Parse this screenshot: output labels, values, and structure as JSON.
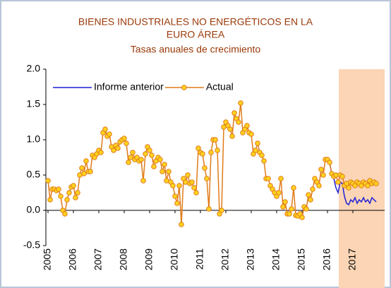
{
  "chart_data": {
    "type": "line",
    "title": [
      "BIENES INDUSTRIALES NO ENERGÉTICOS EN LA",
      "EURO ÁREA"
    ],
    "subtitle": "Tasas anuales de crecimiento",
    "categories": [
      "2005",
      null,
      null,
      null,
      null,
      null,
      null,
      null,
      null,
      null,
      null,
      null,
      "2006",
      null,
      null,
      null,
      null,
      null,
      null,
      null,
      null,
      null,
      null,
      null,
      "2007",
      null,
      null,
      null,
      null,
      null,
      null,
      null,
      null,
      null,
      null,
      null,
      "2008",
      null,
      null,
      null,
      null,
      null,
      null,
      null,
      null,
      null,
      null,
      null,
      "2009",
      null,
      null,
      null,
      null,
      null,
      null,
      null,
      null,
      null,
      null,
      null,
      "2010",
      null,
      null,
      null,
      null,
      null,
      null,
      null,
      null,
      null,
      null,
      null,
      "2011",
      null,
      null,
      null,
      null,
      null,
      null,
      null,
      null,
      null,
      null,
      null,
      "2012",
      null,
      null,
      null,
      null,
      null,
      null,
      null,
      null,
      null,
      null,
      null,
      "2013",
      null,
      null,
      null,
      null,
      null,
      null,
      null,
      null,
      null,
      null,
      null,
      "2014",
      null,
      null,
      null,
      null,
      null,
      null,
      null,
      null,
      null,
      null,
      null,
      "2015",
      null,
      null,
      null,
      null,
      null,
      null,
      null,
      null,
      null,
      null,
      null,
      "2016",
      null,
      null,
      null,
      null,
      null,
      null,
      null,
      null,
      null,
      null,
      null,
      "2017",
      null,
      null,
      null,
      null,
      null,
      null,
      null,
      null,
      null,
      null,
      null
    ],
    "series": [
      {
        "name": "Informe anterior",
        "color": "#1f1fd6",
        "marker": false,
        "values": [
          null,
          null,
          null,
          null,
          null,
          null,
          null,
          null,
          null,
          null,
          null,
          null,
          null,
          null,
          null,
          null,
          null,
          null,
          null,
          null,
          null,
          null,
          null,
          null,
          null,
          null,
          null,
          null,
          null,
          null,
          null,
          null,
          null,
          null,
          null,
          null,
          null,
          null,
          null,
          null,
          null,
          null,
          null,
          null,
          null,
          null,
          null,
          null,
          null,
          null,
          null,
          null,
          null,
          null,
          null,
          null,
          null,
          null,
          null,
          null,
          null,
          null,
          null,
          null,
          null,
          null,
          null,
          null,
          null,
          null,
          null,
          null,
          null,
          null,
          null,
          null,
          null,
          null,
          null,
          null,
          null,
          null,
          null,
          null,
          null,
          null,
          null,
          null,
          null,
          null,
          null,
          null,
          null,
          null,
          null,
          null,
          null,
          null,
          null,
          null,
          null,
          null,
          null,
          null,
          null,
          null,
          null,
          null,
          null,
          null,
          null,
          null,
          null,
          null,
          null,
          null,
          null,
          null,
          null,
          null,
          null,
          null,
          null,
          null,
          null,
          null,
          null,
          null,
          null,
          null,
          null,
          null,
          0.72,
          0.68,
          0.52,
          0.45,
          0.32,
          0.25,
          0.4,
          0.38,
          0.2,
          0.1,
          0.08,
          0.15,
          0.12,
          0.18,
          0.1,
          0.15,
          0.12,
          0.18,
          0.12,
          0.15,
          0.1,
          0.18,
          0.15,
          0.12
        ]
      },
      {
        "name": "Actual",
        "color": "#e07b1a",
        "marker": true,
        "marker_fill": "#ffd21f",
        "values": [
          0.42,
          0.15,
          0.3,
          0.3,
          0.28,
          0.3,
          0.2,
          0.0,
          -0.05,
          0.15,
          0.25,
          0.33,
          0.35,
          0.18,
          0.25,
          0.5,
          0.6,
          0.52,
          0.7,
          0.55,
          0.55,
          0.78,
          0.75,
          0.8,
          0.85,
          0.82,
          1.1,
          1.15,
          1.05,
          1.08,
          0.9,
          0.85,
          0.92,
          0.88,
          0.97,
          1.0,
          1.02,
          0.95,
          0.68,
          0.75,
          0.82,
          0.72,
          0.75,
          0.7,
          0.72,
          0.42,
          0.8,
          0.9,
          0.85,
          0.78,
          0.62,
          0.7,
          0.75,
          0.72,
          0.55,
          0.65,
          0.42,
          0.55,
          0.4,
          0.35,
          0.2,
          0.1,
          0.35,
          -0.2,
          0.45,
          0.4,
          0.5,
          0.38,
          0.4,
          0.32,
          0.25,
          0.88,
          0.82,
          0.8,
          0.6,
          0.45,
          0.02,
          0.82,
          1.0,
          1.0,
          0.85,
          -0.05,
          0.0,
          1.18,
          1.25,
          1.2,
          1.15,
          1.05,
          1.38,
          1.3,
          1.25,
          1.52,
          1.1,
          1.15,
          1.2,
          1.1,
          1.08,
          0.8,
          0.85,
          0.95,
          0.82,
          0.78,
          0.7,
          0.45,
          0.45,
          0.35,
          0.3,
          0.25,
          0.2,
          0.25,
          0.45,
          0.05,
          0.12,
          -0.05,
          -0.05,
          0.02,
          0.32,
          -0.07,
          -0.08,
          -0.05,
          -0.1,
          0.05,
          0.02,
          0.22,
          0.15,
          0.3,
          0.45,
          0.4,
          0.35,
          0.58,
          0.5,
          0.72,
          0.72,
          0.68,
          0.52,
          0.48,
          0.5,
          0.4,
          0.5,
          0.48,
          0.35,
          0.38,
          0.32,
          0.4,
          0.38,
          0.35,
          0.4,
          0.38,
          0.35,
          0.4,
          0.38,
          0.35,
          0.42,
          0.38,
          0.4,
          0.38
        ]
      }
    ],
    "ylim": [
      -0.5,
      2.0
    ],
    "yticks": [
      {
        "value": -0.5,
        "label": "-0.5"
      },
      {
        "value": 0,
        "label": "0.0"
      },
      {
        "value": 0.5,
        "label": "0.5"
      },
      {
        "value": 1,
        "label": "1.0"
      },
      {
        "value": 1.5,
        "label": "1.5"
      },
      {
        "value": 2,
        "label": "2.0"
      }
    ],
    "legend": "upper left"
  }
}
